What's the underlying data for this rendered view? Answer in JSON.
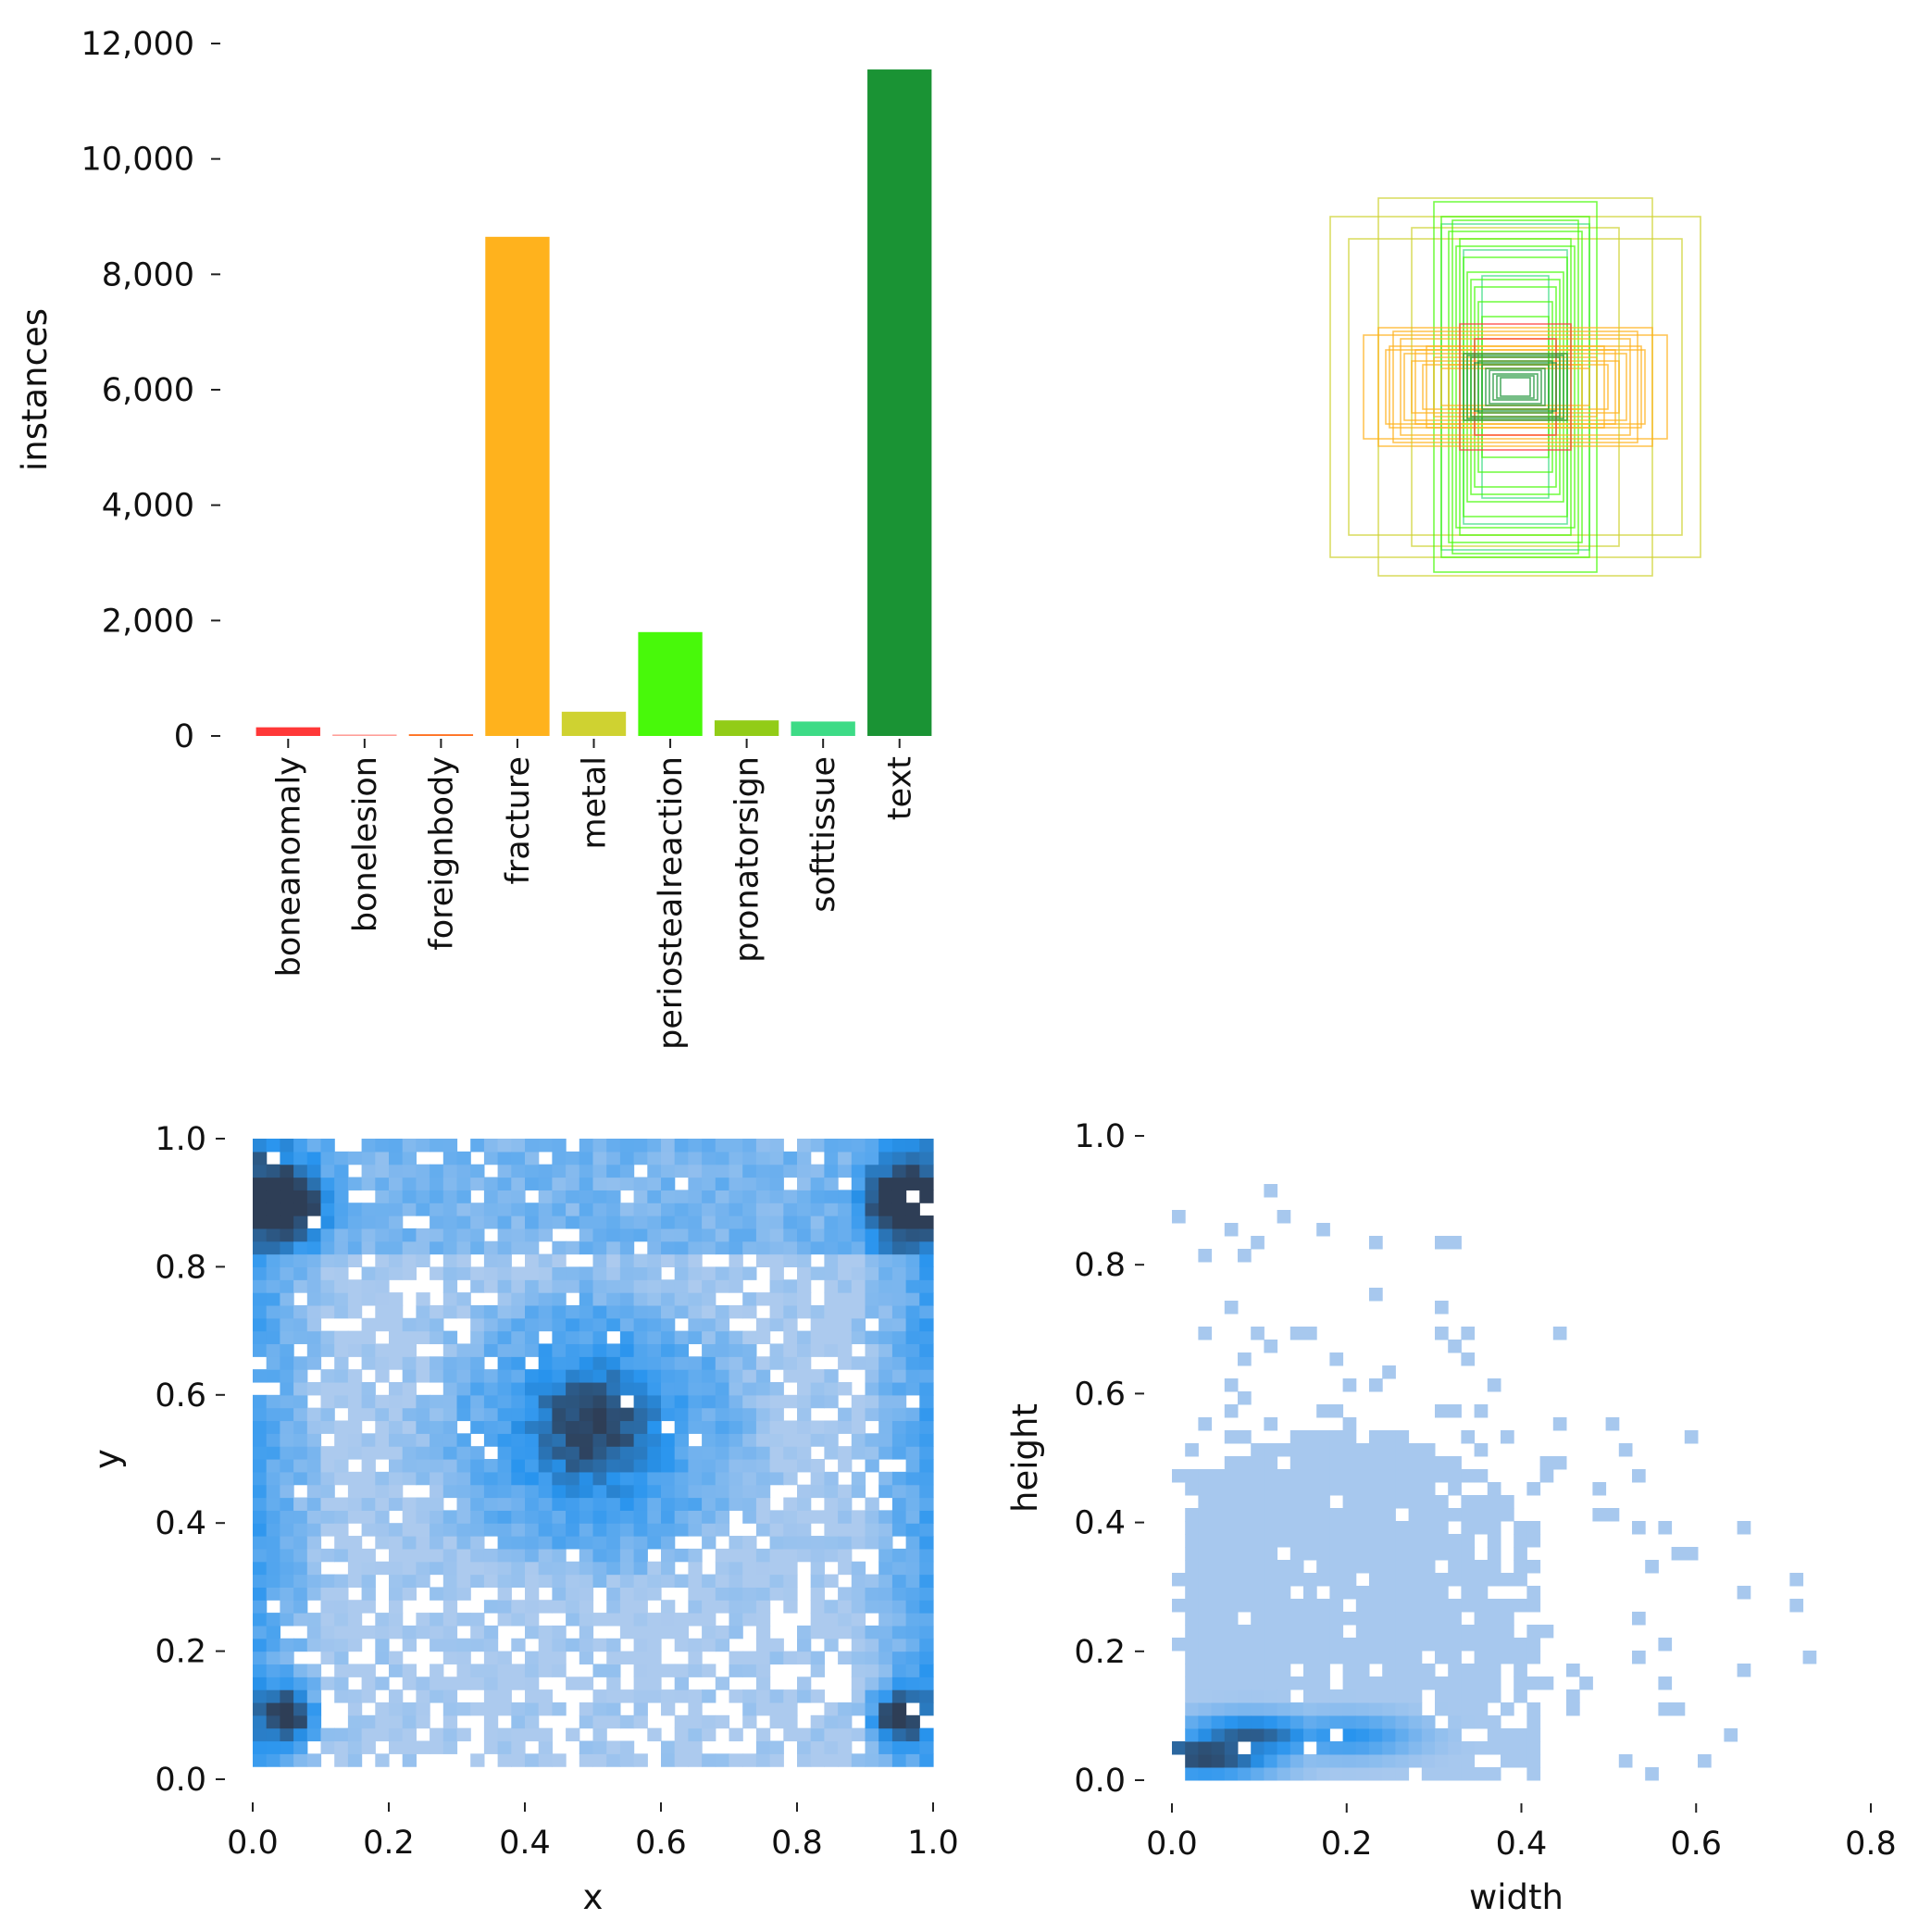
{
  "chart_data": [
    {
      "type": "bar",
      "ylabel": "instances",
      "ylim": [
        0,
        12000
      ],
      "yticks": [
        "0",
        "2,000",
        "4,000",
        "6,000",
        "8,000",
        "10,000",
        "12,000"
      ],
      "ytick_values": [
        0,
        2000,
        4000,
        6000,
        8000,
        10000,
        12000
      ],
      "categories": [
        "boneanomaly",
        "bonelesion",
        "foreignbody",
        "fracture",
        "metal",
        "periostealreaction",
        "pronatorsign",
        "softtissue",
        "text"
      ],
      "values": [
        150,
        25,
        30,
        8650,
        420,
        1800,
        270,
        250,
        11550
      ],
      "colors": [
        "#ff3838",
        "#ff9d97",
        "#ff701f",
        "#ffb21d",
        "#cfd231",
        "#48f90a",
        "#92cc17",
        "#3ddb86",
        "#1a9334"
      ]
    },
    {
      "type": "boxes",
      "description_ref": "overlaid normalized box outlines centered at (0.5,0.5)",
      "groups": [
        {
          "name": "fracture",
          "color": "#ffb21d",
          "boxes": [
            [
              0.82,
              0.28
            ],
            [
              0.74,
              0.32
            ],
            [
              0.68,
              0.22
            ],
            [
              0.6,
              0.18
            ],
            [
              0.56,
              0.14
            ],
            [
              0.5,
              0.12
            ],
            [
              0.44,
              0.16
            ],
            [
              0.4,
              0.1
            ],
            [
              0.36,
              0.12
            ],
            [
              0.66,
              0.3
            ],
            [
              0.62,
              0.26
            ],
            [
              0.54,
              0.2
            ],
            [
              0.7,
              0.2
            ],
            [
              0.48,
              0.22
            ]
          ]
        },
        {
          "name": "text",
          "color": "#1a9334",
          "boxes": [
            [
              0.28,
              0.18
            ],
            [
              0.24,
              0.16
            ],
            [
              0.2,
              0.14
            ],
            [
              0.18,
              0.12
            ],
            [
              0.16,
              0.1
            ],
            [
              0.14,
              0.09
            ],
            [
              0.12,
              0.07
            ],
            [
              0.1,
              0.06
            ],
            [
              0.08,
              0.05
            ],
            [
              0.22,
              0.13
            ],
            [
              0.26,
              0.17
            ]
          ]
        },
        {
          "name": "periostealreaction",
          "color": "#48f90a",
          "boxes": [
            [
              0.44,
              1.0
            ],
            [
              0.4,
              0.92
            ],
            [
              0.36,
              0.84
            ],
            [
              0.32,
              0.76
            ],
            [
              0.28,
              0.7
            ],
            [
              0.26,
              0.62
            ],
            [
              0.22,
              0.54
            ],
            [
              0.2,
              0.46
            ],
            [
              0.18,
              0.38
            ],
            [
              0.3,
              0.8
            ],
            [
              0.34,
              0.9
            ],
            [
              0.24,
              0.58
            ]
          ]
        },
        {
          "name": "metal",
          "color": "#cfd231",
          "boxes": [
            [
              1.0,
              0.92
            ],
            [
              0.74,
              1.02
            ],
            [
              0.56,
              0.86
            ],
            [
              0.9,
              0.8
            ]
          ]
        },
        {
          "name": "softtissue",
          "color": "#3ddb86",
          "boxes": [
            [
              0.4,
              0.88
            ],
            [
              0.28,
              0.74
            ],
            [
              0.18,
              0.6
            ]
          ]
        },
        {
          "name": "boneanomaly",
          "color": "#ff3838",
          "boxes": [
            [
              0.3,
              0.34
            ],
            [
              0.22,
              0.26
            ]
          ]
        }
      ]
    },
    {
      "type": "heatmap",
      "xlabel": "x",
      "ylabel": "y",
      "xlim": [
        0,
        1
      ],
      "ylim": [
        0,
        1
      ],
      "xticks": [
        "0.0",
        "0.2",
        "0.4",
        "0.6",
        "0.8",
        "1.0"
      ],
      "yticks": [
        "0.0",
        "0.2",
        "0.4",
        "0.6",
        "0.8",
        "1.0"
      ],
      "tick_values": [
        0,
        0.2,
        0.4,
        0.6,
        0.8,
        1.0
      ],
      "bins": 50,
      "hotspots": [
        {
          "x": 0.5,
          "y": 0.55,
          "intensity": 1.0,
          "spread": 0.09
        },
        {
          "x": 0.05,
          "y": 0.9,
          "intensity": 0.9,
          "spread": 0.04
        },
        {
          "x": 0.95,
          "y": 0.9,
          "intensity": 0.9,
          "spread": 0.04
        },
        {
          "x": 0.05,
          "y": 0.1,
          "intensity": 0.85,
          "spread": 0.03
        },
        {
          "x": 0.95,
          "y": 0.1,
          "intensity": 0.85,
          "spread": 0.03
        }
      ]
    },
    {
      "type": "heatmap",
      "xlabel": "width",
      "ylabel": "height",
      "xlim": [
        0,
        0.8
      ],
      "ylim": [
        0,
        1
      ],
      "xticks": [
        "0.0",
        "0.2",
        "0.4",
        "0.6",
        "0.8"
      ],
      "yticks": [
        "0.0",
        "0.2",
        "0.4",
        "0.6",
        "0.8",
        "1.0"
      ],
      "xtick_values": [
        0,
        0.2,
        0.4,
        0.6,
        0.8
      ],
      "ytick_values": [
        0,
        0.2,
        0.4,
        0.6,
        0.8,
        1.0
      ],
      "hotspots": [
        {
          "x": 0.04,
          "y": 0.04,
          "intensity": 1.0
        },
        {
          "x": 0.09,
          "y": 0.07,
          "intensity": 0.85
        },
        {
          "x": 0.2,
          "y": 0.07,
          "intensity": 0.55
        }
      ]
    }
  ]
}
